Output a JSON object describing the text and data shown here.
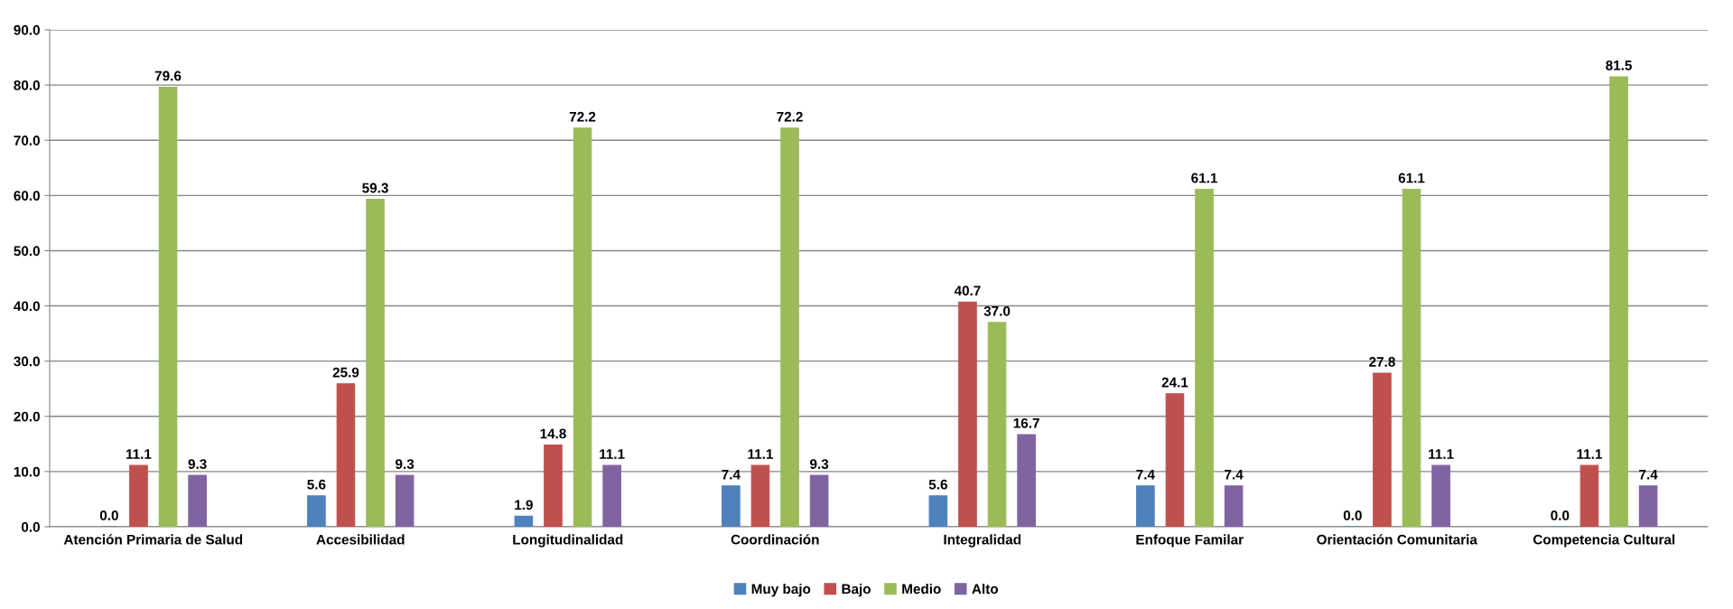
{
  "chart_data": {
    "type": "bar",
    "categories": [
      "Atención Primaria de Salud",
      "Accesibilidad",
      "Longitudinalidad",
      "Coordinación",
      "Integralidad",
      "Enfoque Familar",
      "Orientación Comunitaria",
      "Competencia Cultural"
    ],
    "series": [
      {
        "name": "Muy bajo",
        "color": "#4f81bd",
        "values": [
          0.0,
          5.6,
          1.9,
          7.4,
          5.6,
          7.4,
          0.0,
          0.0
        ],
        "value_labels": [
          "0.0",
          "5.6",
          "1.9",
          "7.4",
          "5.6",
          "7.4",
          "0.0",
          "0.0"
        ]
      },
      {
        "name": "Bajo",
        "color": "#c0504d",
        "values": [
          11.1,
          25.9,
          14.8,
          11.1,
          40.7,
          24.1,
          27.8,
          11.1
        ],
        "value_labels": [
          "11.1",
          "25.9",
          "14.8",
          "11.1",
          "40.7",
          "24.1",
          "27.8",
          "11.1"
        ]
      },
      {
        "name": "Medio",
        "color": "#9bbb59",
        "values": [
          79.6,
          59.3,
          72.2,
          72.2,
          37.0,
          61.1,
          61.1,
          81.5
        ],
        "value_labels": [
          "79.6",
          "59.3",
          "72.2",
          "72.2",
          "37.0",
          "61.1",
          "61.1",
          "81.5"
        ]
      },
      {
        "name": "Alto",
        "color": "#8064a2",
        "values": [
          9.3,
          9.3,
          11.1,
          9.3,
          16.7,
          7.4,
          11.1,
          7.4
        ],
        "value_labels": [
          "9.3",
          "9.3",
          "11.1",
          "9.3",
          "16.7",
          "7.4",
          "11.1",
          "7.4"
        ]
      }
    ],
    "ylim": [
      0,
      90
    ],
    "yticks": [
      {
        "value": 0,
        "label": "0.0"
      },
      {
        "value": 10,
        "label": "10.0"
      },
      {
        "value": 20,
        "label": "20.0"
      },
      {
        "value": 30,
        "label": "30.0"
      },
      {
        "value": 40,
        "label": "40.0"
      },
      {
        "value": 50,
        "label": "50.0"
      },
      {
        "value": 60,
        "label": "60.0"
      },
      {
        "value": 70,
        "label": "70.0"
      },
      {
        "value": 80,
        "label": "80.0"
      },
      {
        "value": 90,
        "label": "90.0"
      }
    ],
    "grid": "y",
    "legend": "bottom"
  }
}
